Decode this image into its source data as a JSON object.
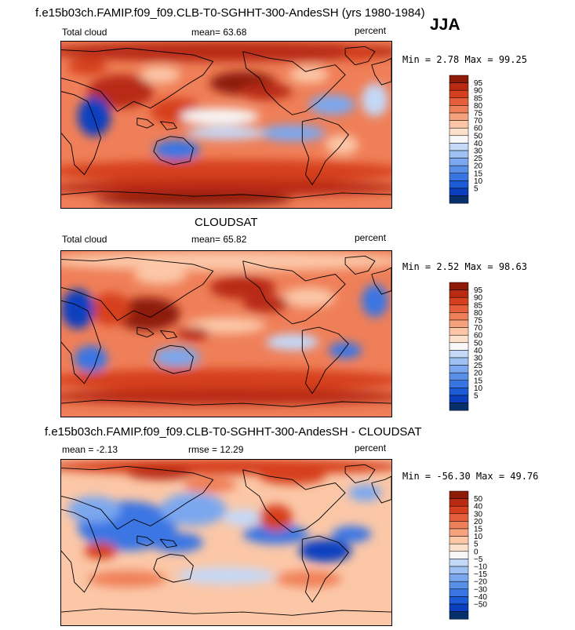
{
  "header": {
    "run_title": "f.e15b03ch.FAMIP.f09_f09.CLB-T0-SGHHT-300-AndesSH (yrs 1980-1984)",
    "season": "JJA"
  },
  "colors": {
    "abs_scale": [
      "#08306b",
      "#0b3fbf",
      "#1c5bd6",
      "#3a76e3",
      "#5a8fe8",
      "#7ca7ee",
      "#9fc0f3",
      "#c4d8f8",
      "#f7f7f7",
      "#fde0cc",
      "#fbc7a7",
      "#f6a27d",
      "#ef7f58",
      "#e65f3b",
      "#d6401f",
      "#b82a12",
      "#8e1b0a"
    ],
    "diff_scale": [
      "#08306b",
      "#0b3fbf",
      "#1c5bd6",
      "#3a76e3",
      "#5a8fe8",
      "#7ca7ee",
      "#9fc0f3",
      "#c4d8f8",
      "#f7f7f7",
      "#fde0cc",
      "#fbc7a7",
      "#f6a27d",
      "#ef7f58",
      "#e65f3b",
      "#d6401f",
      "#b82a12",
      "#8e1b0a"
    ]
  },
  "panels": [
    {
      "title": "",
      "left_label": "Total cloud",
      "center_label": "mean=  63.68",
      "right_label": "percent",
      "minmax": "Min =    2.78 Max =  99.25"
    },
    {
      "title": "CLOUDSAT",
      "left_label": "Total cloud",
      "center_label": "mean=  65.82",
      "right_label": "percent",
      "minmax": "Min =    2.52 Max =  98.63"
    },
    {
      "title": "f.e15b03ch.FAMIP.f09_f09.CLB-T0-SGHHT-300-AndesSH - CLOUDSAT",
      "left_label": "mean =  -2.13",
      "center_label": "rmse =  12.29",
      "right_label": "percent",
      "minmax": "Min = -56.30 Max =  49.76"
    }
  ],
  "chart_data": [
    {
      "type": "heatmap",
      "panel": "model",
      "variable": "Total cloud",
      "units": "percent",
      "mean": 63.68,
      "min": 2.78,
      "max": 99.25,
      "contour_levels": [
        5,
        10,
        15,
        20,
        25,
        30,
        40,
        50,
        60,
        70,
        75,
        80,
        85,
        90,
        95
      ]
    },
    {
      "type": "heatmap",
      "panel": "observation",
      "title": "CLOUDSAT",
      "variable": "Total cloud",
      "units": "percent",
      "mean": 65.82,
      "min": 2.52,
      "max": 98.63,
      "contour_levels": [
        5,
        10,
        15,
        20,
        25,
        30,
        40,
        50,
        60,
        70,
        75,
        80,
        85,
        90,
        95
      ]
    },
    {
      "type": "heatmap",
      "panel": "difference",
      "title": "f.e15b03ch.FAMIP.f09_f09.CLB-T0-SGHHT-300-AndesSH - CLOUDSAT",
      "units": "percent",
      "mean": -2.13,
      "rmse": 12.29,
      "min": -56.3,
      "max": 49.76,
      "contour_levels": [
        -50,
        -40,
        -30,
        -20,
        -15,
        -10,
        -5,
        0,
        5,
        10,
        15,
        20,
        30,
        40,
        50
      ]
    }
  ],
  "colorbars": {
    "abs_labels": [
      "95",
      "90",
      "85",
      "80",
      "75",
      "70",
      "60",
      "50",
      "40",
      "30",
      "25",
      "20",
      "15",
      "10",
      "5"
    ],
    "diff_labels": [
      "50",
      "40",
      "30",
      "20",
      "15",
      "10",
      "5",
      "0",
      "−5",
      "−10",
      "−15",
      "−20",
      "−30",
      "−40",
      "−50"
    ]
  }
}
